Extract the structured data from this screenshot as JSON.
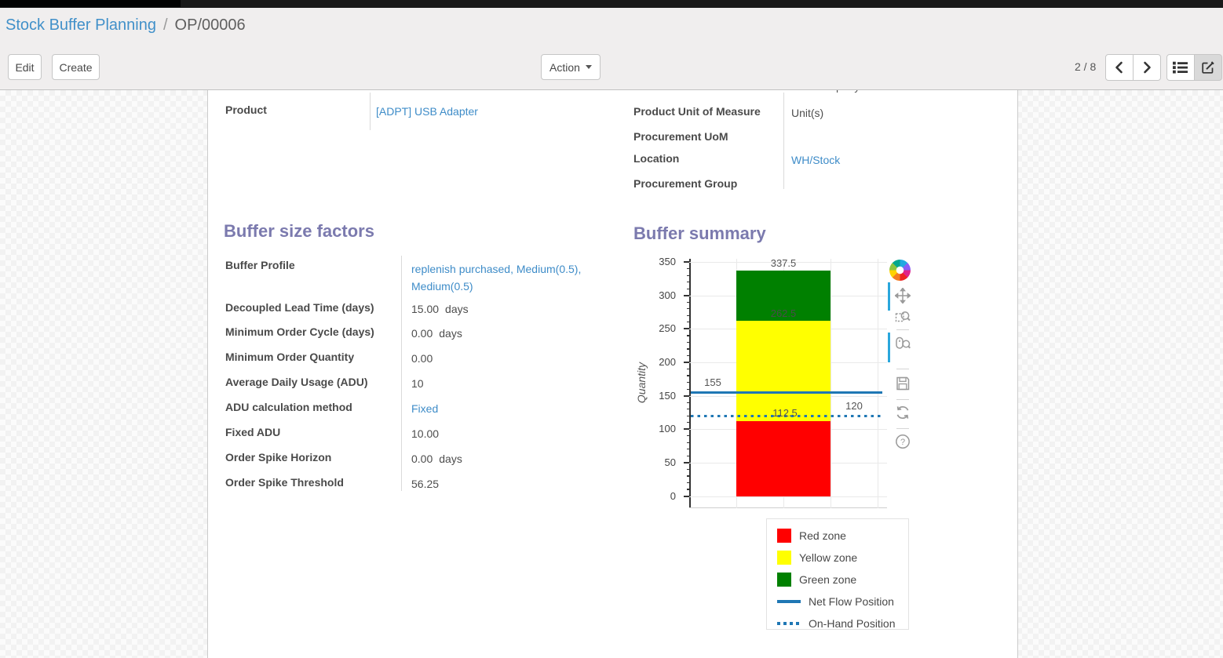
{
  "breadcrumb": {
    "parent": "Stock Buffer Planning",
    "separator": "/",
    "current": "OP/00006"
  },
  "actions": {
    "edit": "Edit",
    "create": "Create",
    "action": "Action"
  },
  "pager": {
    "text": "2 / 8"
  },
  "view_switcher": {
    "views": [
      "list",
      "form"
    ],
    "active": "form"
  },
  "sheet": {
    "clipped_fragment": "pany",
    "left_group": {
      "rows": [
        {
          "label": "Product",
          "value": "[ADPT] USB Adapter",
          "link": true
        }
      ]
    },
    "right_group": {
      "rows": [
        {
          "label": "Product Unit of Measure",
          "value": "Unit(s)",
          "link": false
        },
        {
          "label": "Procurement UoM",
          "value": "",
          "link": false
        },
        {
          "label": "Location",
          "value": "WH/Stock",
          "link": true
        },
        {
          "label": "Procurement Group",
          "value": "",
          "link": false
        }
      ]
    },
    "factors": {
      "title": "Buffer size factors",
      "rows": [
        {
          "label": "Buffer Profile",
          "value": "replenish purchased, Medium(0.5), Medium(0.5)",
          "link": true
        },
        {
          "label": "Decoupled Lead Time (days)",
          "value": "15.00",
          "suffix": "days"
        },
        {
          "label": "Minimum Order Cycle (days)",
          "value": "0.00",
          "suffix": "days"
        },
        {
          "label": "Minimum Order Quantity",
          "value": "0.00"
        },
        {
          "label": "Average Daily Usage (ADU)",
          "value": "10"
        },
        {
          "label": "ADU calculation method",
          "value": "Fixed",
          "link": true
        },
        {
          "label": "Fixed ADU",
          "value": "10.00"
        },
        {
          "label": "Order Spike Horizon",
          "value": "0.00",
          "suffix": "days"
        },
        {
          "label": "Order Spike Threshold",
          "value": "56.25"
        }
      ]
    },
    "summary_title": "Buffer summary"
  },
  "chart_data": {
    "type": "bar",
    "title": "Buffer summary",
    "ylabel": "Quantity",
    "ylim": [
      0,
      350
    ],
    "ytick_labels": [
      "0",
      "50",
      "100",
      "150",
      "200",
      "250",
      "300",
      "350"
    ],
    "grid": true,
    "zones": [
      {
        "name": "Red zone",
        "color": "#ff0000",
        "from": 0,
        "to": 112.5
      },
      {
        "name": "Yellow zone",
        "color": "#ffff00",
        "from": 112.5,
        "to": 262.5
      },
      {
        "name": "Green zone",
        "color": "#008000",
        "from": 262.5,
        "to": 337.5
      }
    ],
    "lines": [
      {
        "name": "Net Flow Position",
        "value": 155,
        "style": "solid",
        "color": "#1f77b4"
      },
      {
        "name": "On-Hand Position",
        "value": 120,
        "style": "dotted",
        "color": "#1f77b4"
      }
    ],
    "annotations": {
      "green_top": "337.5",
      "yellow_top": "262.5",
      "red_top": "112.5",
      "net_flow": "155",
      "on_hand": "120"
    },
    "legend_position": "below-right",
    "legend": [
      {
        "label": "Red zone",
        "swatch": "box",
        "color": "#ff0000"
      },
      {
        "label": "Yellow zone",
        "swatch": "box",
        "color": "#ffff00"
      },
      {
        "label": "Green zone",
        "swatch": "box",
        "color": "#008000"
      },
      {
        "label": "Net Flow Position",
        "swatch": "line",
        "color": "#1f77b4"
      },
      {
        "label": "On-Hand Position",
        "swatch": "dotted",
        "color": "#1f77b4"
      }
    ],
    "toolbar": [
      "pan",
      "box-zoom",
      "wheel-zoom",
      "save",
      "reset",
      "help"
    ],
    "toolbar_active": [
      "pan",
      "wheel-zoom"
    ]
  }
}
